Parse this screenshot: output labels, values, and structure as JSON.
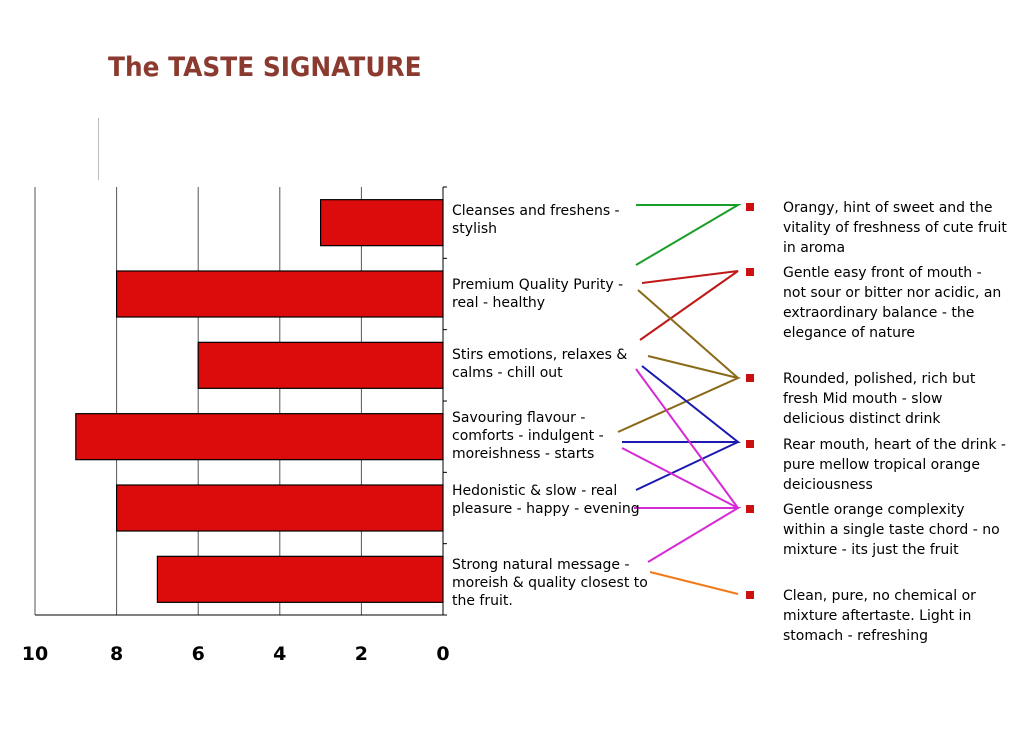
{
  "title": "The TASTE SIGNATURE",
  "chart_data": {
    "type": "bar",
    "orientation": "horizontal",
    "x_reversed": true,
    "categories": [
      "Cleanses and freshens - stylish",
      "Premium Quality Purity - real - healthy",
      "Stirs emotions, relaxes & calms - chill out",
      "Savouring flavour - comforts - indulgent - moreishness - starts",
      "Hedonistic & slow - real pleasure - happy - evening",
      "Strong natural message - moreish & quality closest to the fruit."
    ],
    "values": [
      3,
      8,
      6,
      9,
      8,
      7
    ],
    "xlim": [
      0,
      10
    ],
    "ticks": [
      "10",
      "8",
      "6",
      "4",
      "2",
      "0"
    ],
    "grid": true,
    "bar_color": "#dd0c0c"
  },
  "notes": [
    "Orangy, hint of sweet and the vitality of freshness of cute fruit in aroma",
    "Gentle easy front of mouth - not sour or bitter nor acidic, an extraordinary balance - the elegance of nature",
    "Rounded, polished, rich but fresh Mid mouth - slow delicious distinct drink",
    "Rear mouth, heart of the drink - pure mellow tropical orange deiciousness",
    "Gentle orange complexity within a single taste chord - no mixture - its just the fruit",
    "Clean, pure, no chemical or mixture aftertaste. Light in stomach - refreshing"
  ],
  "connectors": [
    {
      "color": "#1a9e2a"
    },
    {
      "color": "#c01818"
    },
    {
      "color": "#8a6a18"
    },
    {
      "color": "#1a1ab0"
    },
    {
      "color": "#d62ad6"
    },
    {
      "color": "#f07a1a"
    }
  ]
}
